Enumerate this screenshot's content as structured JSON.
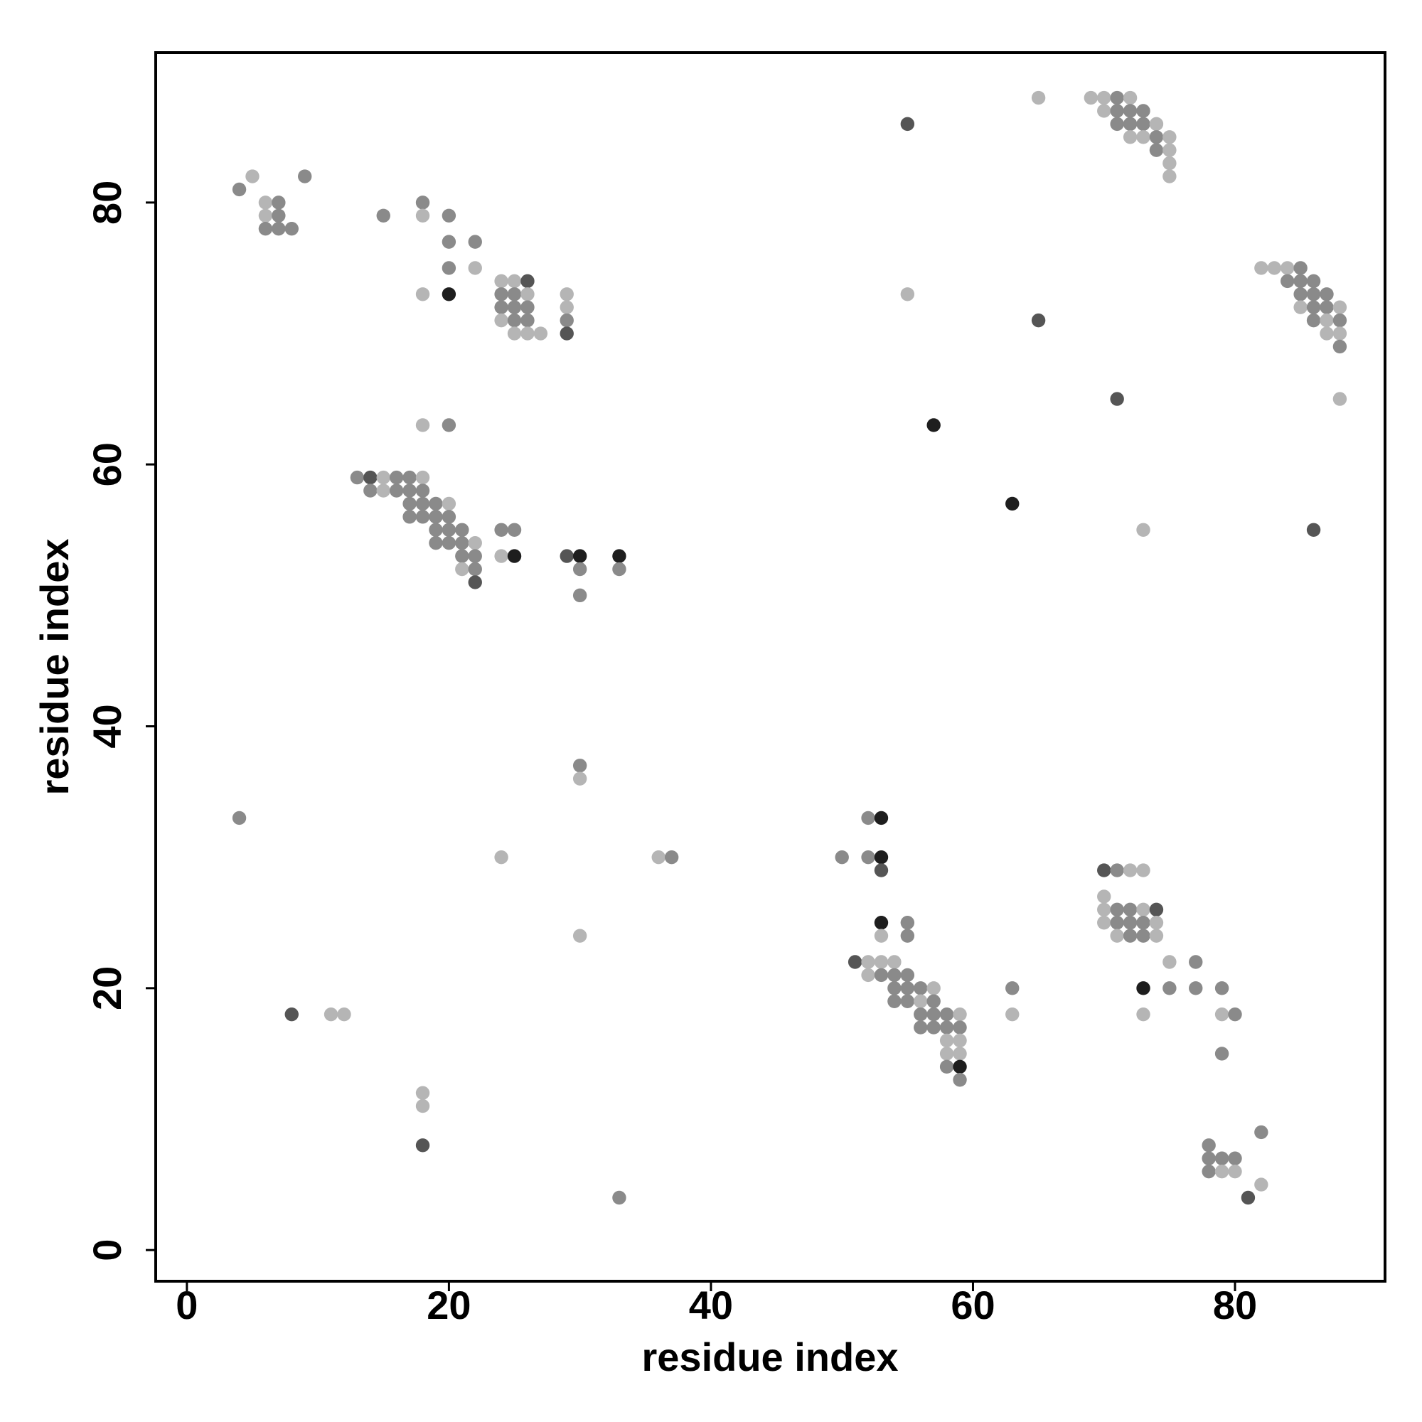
{
  "chart_data": {
    "type": "scatter",
    "xlabel": "residue index",
    "ylabel": "residue index",
    "xlim": [
      -2.38,
      91.45
    ],
    "ylim": [
      -2.38,
      91.45
    ],
    "xticks": [
      0,
      20,
      40,
      60,
      80
    ],
    "yticks": [
      0,
      20,
      40,
      60,
      80
    ],
    "grid": false,
    "x": [
      4,
      5,
      9,
      6,
      7,
      6,
      7,
      6,
      7,
      8,
      15,
      18,
      18,
      20,
      20,
      22,
      22,
      20,
      18,
      20,
      24,
      25,
      26,
      24,
      25,
      26,
      24,
      25,
      26,
      24,
      25,
      26,
      25,
      26,
      27,
      29,
      29,
      29,
      29,
      18,
      20,
      13,
      14,
      15,
      16,
      17,
      18,
      14,
      15,
      16,
      17,
      18,
      17,
      18,
      19,
      20,
      17,
      18,
      19,
      20,
      19,
      20,
      21,
      19,
      20,
      21,
      22,
      21,
      22,
      21,
      22,
      22,
      24,
      25,
      24,
      25,
      29,
      30,
      33,
      30,
      33,
      30,
      30,
      30,
      4,
      24,
      36,
      37,
      30,
      8,
      11,
      12,
      18,
      18,
      18,
      33,
      55,
      65,
      55,
      65,
      69,
      70,
      71,
      72,
      70,
      71,
      72,
      73,
      71,
      72,
      73,
      74,
      72,
      73,
      74,
      75,
      74,
      75,
      75,
      75,
      82,
      83,
      84,
      85,
      84,
      85,
      86,
      85,
      86,
      87,
      85,
      86,
      87,
      88,
      86,
      87,
      88,
      87,
      88,
      88,
      88,
      71,
      57,
      63,
      73,
      86,
      52,
      53,
      50,
      52,
      53,
      53,
      53,
      55,
      53,
      55,
      51,
      52,
      53,
      54,
      52,
      53,
      54,
      55,
      54,
      55,
      56,
      57,
      54,
      55,
      56,
      57,
      56,
      57,
      58,
      59,
      56,
      57,
      58,
      59,
      58,
      59,
      58,
      59,
      58,
      59,
      59,
      63,
      63,
      70,
      71,
      72,
      73,
      70,
      70,
      71,
      72,
      73,
      74,
      70,
      71,
      72,
      73,
      74,
      71,
      72,
      73,
      74,
      75,
      77,
      73,
      75,
      77,
      79,
      73,
      79,
      80,
      79,
      82,
      78,
      78,
      79,
      80,
      78,
      79,
      80,
      82,
      81
    ],
    "y": [
      81,
      82,
      82,
      80,
      80,
      79,
      79,
      78,
      78,
      78,
      79,
      80,
      79,
      79,
      77,
      77,
      75,
      75,
      73,
      73,
      74,
      74,
      74,
      73,
      73,
      73,
      72,
      72,
      72,
      71,
      71,
      71,
      70,
      70,
      70,
      73,
      72,
      71,
      70,
      63,
      63,
      59,
      59,
      59,
      59,
      59,
      59,
      58,
      58,
      58,
      58,
      58,
      57,
      57,
      57,
      57,
      56,
      56,
      56,
      56,
      55,
      55,
      55,
      54,
      54,
      54,
      54,
      53,
      53,
      52,
      52,
      51,
      55,
      55,
      53,
      53,
      53,
      53,
      53,
      52,
      52,
      50,
      37,
      36,
      33,
      30,
      30,
      30,
      24,
      18,
      18,
      18,
      12,
      11,
      8,
      4,
      86,
      88,
      73,
      71,
      88,
      88,
      88,
      88,
      87,
      87,
      87,
      87,
      86,
      86,
      86,
      86,
      85,
      85,
      85,
      85,
      84,
      84,
      83,
      82,
      75,
      75,
      75,
      75,
      74,
      74,
      74,
      73,
      73,
      73,
      72,
      72,
      72,
      72,
      71,
      71,
      71,
      70,
      70,
      69,
      65,
      65,
      63,
      57,
      55,
      55,
      33,
      33,
      30,
      30,
      30,
      29,
      25,
      25,
      24,
      24,
      22,
      22,
      22,
      22,
      21,
      21,
      21,
      21,
      20,
      20,
      20,
      20,
      19,
      19,
      19,
      19,
      18,
      18,
      18,
      18,
      17,
      17,
      17,
      17,
      16,
      16,
      15,
      15,
      14,
      14,
      13,
      20,
      18,
      29,
      29,
      29,
      29,
      27,
      26,
      26,
      26,
      26,
      26,
      25,
      25,
      25,
      25,
      25,
      24,
      24,
      24,
      24,
      22,
      22,
      20,
      20,
      20,
      20,
      18,
      18,
      18,
      15,
      9,
      8,
      7,
      7,
      7,
      6,
      6,
      6,
      5,
      4
    ],
    "colors": [
      "#8a8a8a",
      "#b5b5b5",
      "#8a8a8a",
      "#b5b5b5",
      "#8a8a8a",
      "#b5b5b5",
      "#8a8a8a",
      "#8a8a8a",
      "#8a8a8a",
      "#8a8a8a",
      "#8a8a8a",
      "#8a8a8a",
      "#b5b5b5",
      "#8a8a8a",
      "#8a8a8a",
      "#8a8a8a",
      "#b5b5b5",
      "#8a8a8a",
      "#b5b5b5",
      "#1e1e1e",
      "#b5b5b5",
      "#b5b5b5",
      "#555555",
      "#8a8a8a",
      "#8a8a8a",
      "#b5b5b5",
      "#8a8a8a",
      "#8a8a8a",
      "#8a8a8a",
      "#b5b5b5",
      "#8a8a8a",
      "#8a8a8a",
      "#b5b5b5",
      "#b5b5b5",
      "#b5b5b5",
      "#b5b5b5",
      "#b5b5b5",
      "#8a8a8a",
      "#555555",
      "#b5b5b5",
      "#8a8a8a",
      "#8a8a8a",
      "#555555",
      "#b5b5b5",
      "#8a8a8a",
      "#8a8a8a",
      "#b5b5b5",
      "#8a8a8a",
      "#b5b5b5",
      "#8a8a8a",
      "#8a8a8a",
      "#8a8a8a",
      "#8a8a8a",
      "#8a8a8a",
      "#8a8a8a",
      "#b5b5b5",
      "#8a8a8a",
      "#8a8a8a",
      "#8a8a8a",
      "#8a8a8a",
      "#8a8a8a",
      "#8a8a8a",
      "#8a8a8a",
      "#8a8a8a",
      "#8a8a8a",
      "#8a8a8a",
      "#b5b5b5",
      "#8a8a8a",
      "#8a8a8a",
      "#b5b5b5",
      "#8a8a8a",
      "#555555",
      "#8a8a8a",
      "#8a8a8a",
      "#b5b5b5",
      "#1e1e1e",
      "#555555",
      "#1e1e1e",
      "#1e1e1e",
      "#8a8a8a",
      "#8a8a8a",
      "#8a8a8a",
      "#8a8a8a",
      "#b5b5b5",
      "#8a8a8a",
      "#b5b5b5",
      "#b5b5b5",
      "#8a8a8a",
      "#b5b5b5",
      "#555555",
      "#b5b5b5",
      "#b5b5b5",
      "#b5b5b5",
      "#b5b5b5",
      "#555555",
      "#8a8a8a",
      "#555555",
      "#b5b5b5",
      "#b5b5b5",
      "#555555",
      "#b5b5b5",
      "#b5b5b5",
      "#8a8a8a",
      "#b5b5b5",
      "#b5b5b5",
      "#8a8a8a",
      "#8a8a8a",
      "#8a8a8a",
      "#8a8a8a",
      "#8a8a8a",
      "#8a8a8a",
      "#b5b5b5",
      "#b5b5b5",
      "#b5b5b5",
      "#8a8a8a",
      "#b5b5b5",
      "#8a8a8a",
      "#b5b5b5",
      "#b5b5b5",
      "#b5b5b5",
      "#b5b5b5",
      "#b5b5b5",
      "#b5b5b5",
      "#8a8a8a",
      "#8a8a8a",
      "#8a8a8a",
      "#8a8a8a",
      "#8a8a8a",
      "#8a8a8a",
      "#8a8a8a",
      "#b5b5b5",
      "#8a8a8a",
      "#8a8a8a",
      "#b5b5b5",
      "#8a8a8a",
      "#b5b5b5",
      "#8a8a8a",
      "#b5b5b5",
      "#b5b5b5",
      "#8a8a8a",
      "#b5b5b5",
      "#555555",
      "#1e1e1e",
      "#1e1e1e",
      "#b5b5b5",
      "#555555",
      "#8a8a8a",
      "#1e1e1e",
      "#8a8a8a",
      "#8a8a8a",
      "#1e1e1e",
      "#555555",
      "#1e1e1e",
      "#8a8a8a",
      "#b5b5b5",
      "#8a8a8a",
      "#555555",
      "#b5b5b5",
      "#b5b5b5",
      "#b5b5b5",
      "#b5b5b5",
      "#8a8a8a",
      "#8a8a8a",
      "#8a8a8a",
      "#8a8a8a",
      "#8a8a8a",
      "#8a8a8a",
      "#b5b5b5",
      "#8a8a8a",
      "#8a8a8a",
      "#b5b5b5",
      "#8a8a8a",
      "#8a8a8a",
      "#8a8a8a",
      "#8a8a8a",
      "#b5b5b5",
      "#8a8a8a",
      "#8a8a8a",
      "#8a8a8a",
      "#8a8a8a",
      "#b5b5b5",
      "#b5b5b5",
      "#b5b5b5",
      "#b5b5b5",
      "#8a8a8a",
      "#1e1e1e",
      "#8a8a8a",
      "#8a8a8a",
      "#b5b5b5",
      "#555555",
      "#8a8a8a",
      "#b5b5b5",
      "#b5b5b5",
      "#b5b5b5",
      "#b5b5b5",
      "#8a8a8a",
      "#8a8a8a",
      "#b5b5b5",
      "#555555",
      "#b5b5b5",
      "#8a8a8a",
      "#8a8a8a",
      "#8a8a8a",
      "#b5b5b5",
      "#b5b5b5",
      "#8a8a8a",
      "#8a8a8a",
      "#b5b5b5",
      "#b5b5b5",
      "#8a8a8a",
      "#1e1e1e",
      "#8a8a8a",
      "#8a8a8a",
      "#8a8a8a",
      "#b5b5b5",
      "#b5b5b5",
      "#8a8a8a",
      "#8a8a8a",
      "#8a8a8a",
      "#8a8a8a",
      "#8a8a8a",
      "#8a8a8a",
      "#8a8a8a",
      "#8a8a8a",
      "#b5b5b5",
      "#b5b5b5",
      "#b5b5b5",
      "#555555"
    ]
  }
}
